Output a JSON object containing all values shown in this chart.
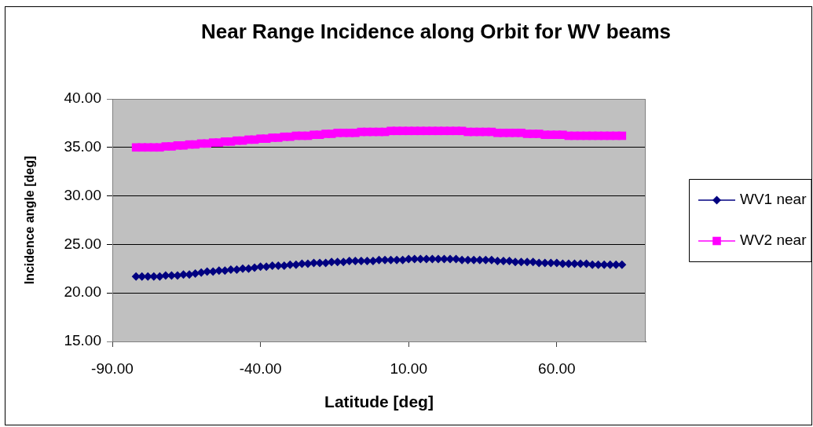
{
  "chart_data": {
    "type": "scatter",
    "title": "Near Range Incidence along Orbit for WV beams",
    "xlabel": "Latitude [deg]",
    "ylabel": "Incidence angle [deg]",
    "marker": "diamond",
    "x": [
      -82,
      -80,
      -78,
      -76,
      -74,
      -72,
      -70,
      -68,
      -66,
      -64,
      -62,
      -60,
      -58,
      -56,
      -54,
      -52,
      -50,
      -48,
      -46,
      -44,
      -42,
      -40,
      -38,
      -36,
      -34,
      -32,
      -30,
      -28,
      -26,
      -24,
      -22,
      -20,
      -18,
      -16,
      -14,
      -12,
      -10,
      -8,
      -6,
      -4,
      -2,
      0,
      2,
      4,
      6,
      8,
      10,
      12,
      14,
      16,
      18,
      20,
      22,
      24,
      26,
      28,
      30,
      32,
      34,
      36,
      38,
      40,
      42,
      44,
      46,
      48,
      50,
      52,
      54,
      56,
      58,
      60,
      62,
      64,
      66,
      68,
      70,
      72,
      74,
      76,
      78,
      80,
      82
    ],
    "series": [
      {
        "name": "WV1 near",
        "color": "#000080",
        "values": [
          21.7,
          21.7,
          21.7,
          21.7,
          21.7,
          21.8,
          21.8,
          21.8,
          21.9,
          21.9,
          22.0,
          22.1,
          22.2,
          22.2,
          22.3,
          22.3,
          22.4,
          22.4,
          22.5,
          22.5,
          22.6,
          22.7,
          22.7,
          22.8,
          22.8,
          22.8,
          22.9,
          22.9,
          23.0,
          23.0,
          23.1,
          23.1,
          23.1,
          23.2,
          23.2,
          23.2,
          23.3,
          23.3,
          23.3,
          23.3,
          23.3,
          23.4,
          23.4,
          23.4,
          23.4,
          23.4,
          23.5,
          23.5,
          23.5,
          23.5,
          23.5,
          23.5,
          23.5,
          23.5,
          23.5,
          23.4,
          23.4,
          23.4,
          23.4,
          23.4,
          23.4,
          23.3,
          23.3,
          23.3,
          23.2,
          23.2,
          23.2,
          23.2,
          23.1,
          23.1,
          23.1,
          23.1,
          23.0,
          23.0,
          23.0,
          23.0,
          23.0,
          22.9,
          22.9,
          22.9,
          22.9,
          22.9,
          22.9
        ]
      },
      {
        "name": "WV2 near",
        "color": "#ff00ff",
        "marker": "square",
        "values": [
          35.0,
          35.0,
          35.0,
          35.0,
          35.0,
          35.1,
          35.1,
          35.2,
          35.2,
          35.3,
          35.3,
          35.4,
          35.4,
          35.5,
          35.5,
          35.6,
          35.6,
          35.7,
          35.7,
          35.8,
          35.8,
          35.9,
          35.9,
          36.0,
          36.0,
          36.1,
          36.1,
          36.2,
          36.2,
          36.2,
          36.3,
          36.3,
          36.4,
          36.4,
          36.5,
          36.5,
          36.5,
          36.5,
          36.6,
          36.6,
          36.6,
          36.6,
          36.6,
          36.7,
          36.7,
          36.7,
          36.7,
          36.7,
          36.7,
          36.7,
          36.7,
          36.7,
          36.7,
          36.7,
          36.7,
          36.7,
          36.6,
          36.6,
          36.6,
          36.6,
          36.6,
          36.5,
          36.5,
          36.5,
          36.5,
          36.5,
          36.4,
          36.4,
          36.4,
          36.3,
          36.3,
          36.3,
          36.3,
          36.2,
          36.2,
          36.2,
          36.2,
          36.2,
          36.2,
          36.2,
          36.2,
          36.2,
          36.2
        ]
      }
    ],
    "xlim": [
      -90,
      90
    ],
    "xticks": [
      {
        "value": -90,
        "label": "-90.00"
      },
      {
        "value": -40,
        "label": "-40.00"
      },
      {
        "value": 10,
        "label": "10.00"
      },
      {
        "value": 60,
        "label": "60.00"
      }
    ],
    "ylim": [
      15,
      40
    ],
    "yticks": [
      {
        "value": 15,
        "label": "15.00"
      },
      {
        "value": 20,
        "label": "20.00"
      },
      {
        "value": 25,
        "label": "25.00"
      },
      {
        "value": 30,
        "label": "30.00"
      },
      {
        "value": 35,
        "label": "35.00"
      },
      {
        "value": 40,
        "label": "40.00"
      }
    ],
    "grid": "y",
    "legend": "right"
  }
}
